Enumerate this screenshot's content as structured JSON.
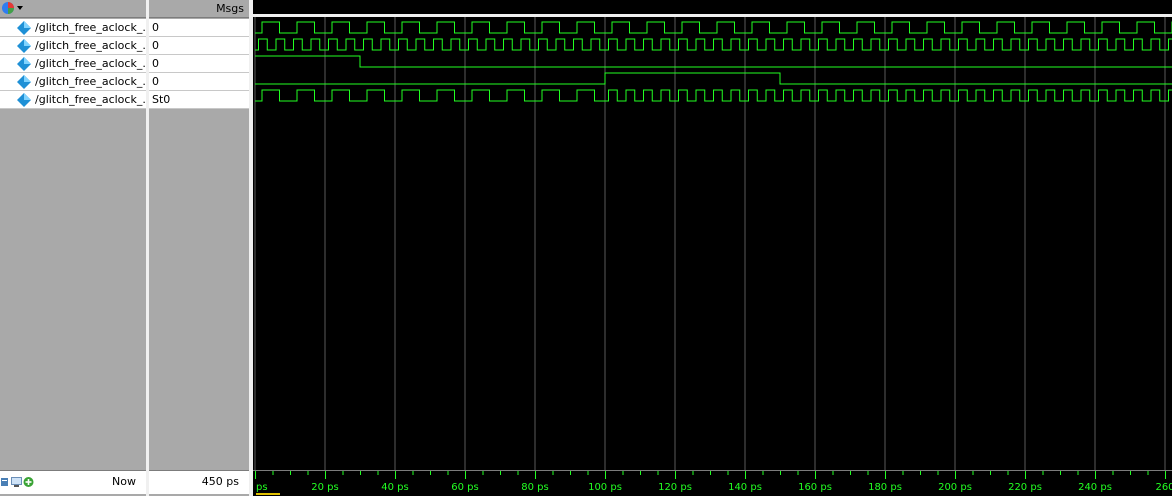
{
  "header": {
    "msgs_label": "Msgs"
  },
  "signals": [
    {
      "name": "/glitch_free_aclock_...",
      "value": "0"
    },
    {
      "name": "/glitch_free_aclock_...",
      "value": "0"
    },
    {
      "name": "/glitch_free_aclock_...",
      "value": "0"
    },
    {
      "name": "/glitch_free_aclock_...",
      "value": "0"
    },
    {
      "name": "/glitch_free_aclock_...",
      "value": "St0"
    }
  ],
  "footer": {
    "now_label": "Now",
    "now_value": "450 ps",
    "cursor_label": ""
  },
  "timeline": {
    "unit": "ps",
    "first_label": "ps",
    "tick_labels": [
      "20 ps",
      "40 ps",
      "60 ps",
      "80 ps",
      "100 ps",
      "120 ps",
      "140 ps",
      "160 ps",
      "180 ps",
      "200 ps",
      "220 ps",
      "240 ps",
      "260"
    ]
  },
  "waveforms": {
    "color": "#22ff22",
    "sig1_period_ps": 10,
    "sig2_period_ps": 5,
    "sig3_fall_ps": 30,
    "sig4_rise_ps": 100,
    "sig4_fall_ps": 150,
    "sig5_change_ps": 100
  },
  "colors": {
    "wave": "#22ff22",
    "grid": "#5a5a5a",
    "background": "#000000",
    "cursor_marker": "#e0c000"
  },
  "icons": {
    "signal": "diamond-signal-icon",
    "toolbar_main": "multicolor-cube-icon",
    "bottom_left": [
      "zoom-icon",
      "monitor-icon",
      "add-icon"
    ]
  }
}
